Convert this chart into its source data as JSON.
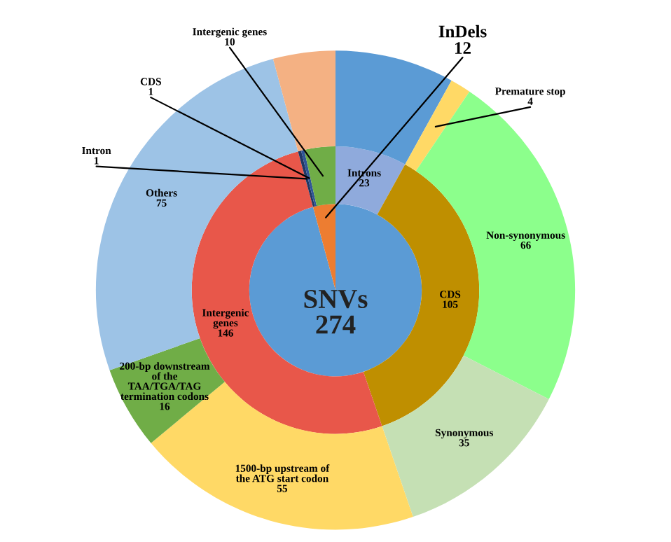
{
  "chart_data": {
    "type": "donut",
    "series": [
      {
        "values": [
          274,
          12
        ],
        "value_labels": [
          "SNVs\n274",
          "InDels\n12"
        ],
        "colors": [
          "#5b9bd5",
          "#ed7d31"
        ]
      },
      {
        "values": [
          23,
          105,
          146,
          1,
          1,
          10
        ],
        "value_labels": [
          "Introns\n23",
          "CDS\n105",
          "Intergenic\ngenes\n146",
          "Intron\n1",
          "CDS\n1",
          "Intergenic genes\n10"
        ],
        "colors": [
          "#8faadc",
          "#bf8f00",
          "#e8574a",
          "#203864",
          "#2f5597",
          "#70ad47"
        ]
      },
      {
        "values": [
          23,
          4,
          66,
          35,
          55,
          16,
          75,
          12
        ],
        "value_labels": [
          null,
          "Premature stop\n4",
          "Non-synonymous\n66",
          "Synonymous\n35",
          "1500-bp upstream of\nthe ATG start codon\n55",
          "200-bp downstream\nof the\nTAA/TGA/TAG\ntermination codons\n16",
          "Others\n75",
          null
        ],
        "colors": [
          "#5b9bd5",
          "#ffd966",
          "#8cff8c",
          "#c5e0b4",
          "#ffd966",
          "#70ad47",
          "#9dc3e6",
          "#f4b183"
        ]
      }
    ]
  }
}
